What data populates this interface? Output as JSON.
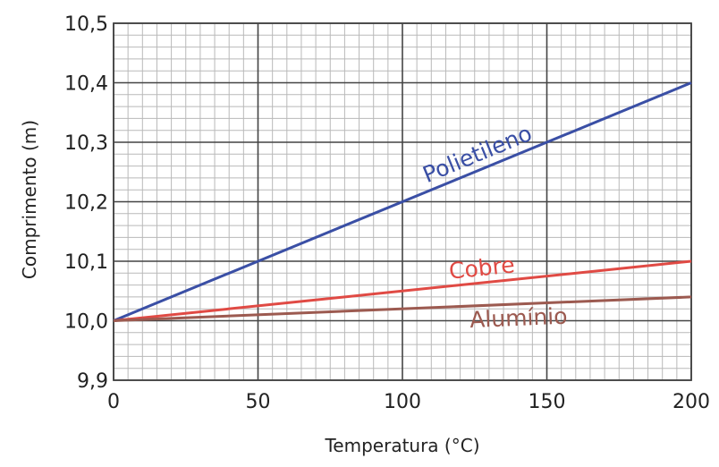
{
  "chart_data": {
    "type": "line",
    "xlabel": "Temperatura (°C)",
    "ylabel": "Comprimento (m)",
    "xlim": [
      0,
      200
    ],
    "ylim": [
      9.9,
      10.5
    ],
    "grid": true,
    "x_ticks": [
      {
        "value": 0,
        "label": "0"
      },
      {
        "value": 50,
        "label": "50"
      },
      {
        "value": 100,
        "label": "100"
      },
      {
        "value": 150,
        "label": "150"
      },
      {
        "value": 200,
        "label": "200"
      }
    ],
    "y_ticks": [
      {
        "value": 9.9,
        "label": "9,9"
      },
      {
        "value": 10.0,
        "label": "10,0"
      },
      {
        "value": 10.1,
        "label": "10,1"
      },
      {
        "value": 10.2,
        "label": "10,2"
      },
      {
        "value": 10.3,
        "label": "10,3"
      },
      {
        "value": 10.4,
        "label": "10,4"
      },
      {
        "value": 10.5,
        "label": "10,5"
      }
    ],
    "x": [
      0,
      200
    ],
    "series": [
      {
        "name": "Polietileno",
        "color": "#3a4fa5",
        "values": [
          10.0,
          10.4
        ]
      },
      {
        "name": "Cobre",
        "color": "#e04a44",
        "values": [
          10.0,
          10.1
        ]
      },
      {
        "name": "Alumínio",
        "color": "#9c5a50",
        "values": [
          10.0,
          10.04
        ]
      }
    ]
  }
}
